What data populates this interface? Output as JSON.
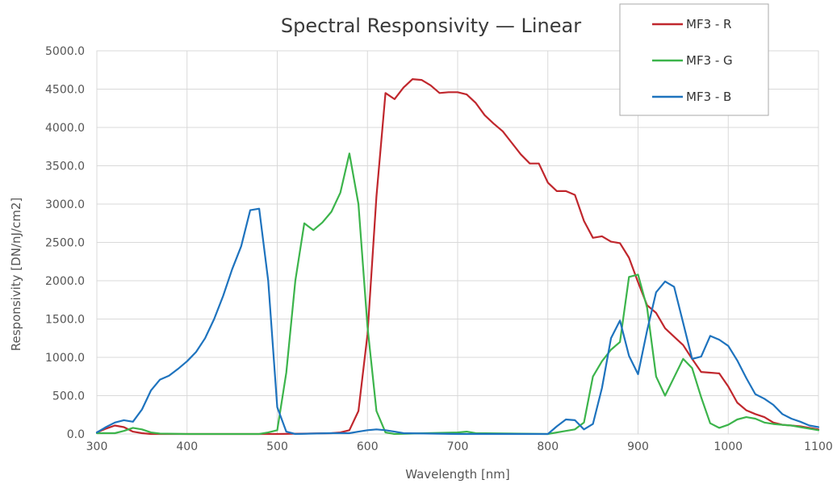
{
  "chart_data": {
    "type": "line",
    "title": "Spectral Responsivity — Linear",
    "xlabel": "Wavelength [nm]",
    "ylabel": "Responsivity [DN/nJ/cm2]",
    "xlim": [
      300,
      1100
    ],
    "ylim": [
      0,
      5000
    ],
    "x_ticks": [
      300,
      400,
      500,
      600,
      700,
      800,
      900,
      1000,
      1100
    ],
    "y_ticks": [
      0,
      500,
      1000,
      1500,
      2000,
      2500,
      3000,
      3500,
      4000,
      4500,
      5000
    ],
    "x_tick_labels": [
      "300",
      "400",
      "500",
      "600",
      "700",
      "800",
      "900",
      "1000",
      "1100"
    ],
    "y_tick_labels": [
      "0.0",
      "500.0",
      "1000.0",
      "1500.0",
      "2000.0",
      "2500.0",
      "3000.0",
      "3500.0",
      "4000.0",
      "4500.0",
      "5000.0"
    ],
    "grid": true,
    "legend_position": "top-right",
    "series": [
      {
        "name": "MF3 - R",
        "color": "#c0272d",
        "points": [
          [
            300,
            20
          ],
          [
            310,
            70
          ],
          [
            320,
            110
          ],
          [
            330,
            90
          ],
          [
            340,
            30
          ],
          [
            350,
            10
          ],
          [
            360,
            0
          ],
          [
            400,
            0
          ],
          [
            500,
            0
          ],
          [
            560,
            10
          ],
          [
            570,
            20
          ],
          [
            580,
            50
          ],
          [
            590,
            300
          ],
          [
            600,
            1300
          ],
          [
            610,
            3100
          ],
          [
            620,
            4450
          ],
          [
            630,
            4370
          ],
          [
            640,
            4520
          ],
          [
            650,
            4630
          ],
          [
            660,
            4620
          ],
          [
            670,
            4550
          ],
          [
            680,
            4450
          ],
          [
            690,
            4460
          ],
          [
            700,
            4460
          ],
          [
            710,
            4430
          ],
          [
            720,
            4320
          ],
          [
            730,
            4160
          ],
          [
            740,
            4050
          ],
          [
            750,
            3950
          ],
          [
            760,
            3800
          ],
          [
            770,
            3650
          ],
          [
            780,
            3530
          ],
          [
            790,
            3530
          ],
          [
            800,
            3280
          ],
          [
            810,
            3170
          ],
          [
            820,
            3170
          ],
          [
            830,
            3120
          ],
          [
            840,
            2780
          ],
          [
            850,
            2560
          ],
          [
            860,
            2580
          ],
          [
            870,
            2510
          ],
          [
            880,
            2490
          ],
          [
            890,
            2300
          ],
          [
            900,
            1980
          ],
          [
            910,
            1680
          ],
          [
            920,
            1580
          ],
          [
            930,
            1380
          ],
          [
            940,
            1270
          ],
          [
            950,
            1160
          ],
          [
            960,
            980
          ],
          [
            970,
            810
          ],
          [
            980,
            800
          ],
          [
            990,
            790
          ],
          [
            1000,
            620
          ],
          [
            1010,
            410
          ],
          [
            1020,
            310
          ],
          [
            1030,
            260
          ],
          [
            1040,
            220
          ],
          [
            1050,
            150
          ],
          [
            1060,
            120
          ],
          [
            1070,
            110
          ],
          [
            1080,
            100
          ],
          [
            1090,
            80
          ],
          [
            1100,
            60
          ]
        ]
      },
      {
        "name": "MF3 - G",
        "color": "#3cb44b",
        "points": [
          [
            300,
            10
          ],
          [
            320,
            10
          ],
          [
            330,
            40
          ],
          [
            340,
            80
          ],
          [
            350,
            60
          ],
          [
            360,
            20
          ],
          [
            370,
            5
          ],
          [
            400,
            0
          ],
          [
            480,
            0
          ],
          [
            490,
            20
          ],
          [
            500,
            50
          ],
          [
            510,
            800
          ],
          [
            520,
            2000
          ],
          [
            530,
            2750
          ],
          [
            540,
            2660
          ],
          [
            550,
            2760
          ],
          [
            560,
            2900
          ],
          [
            570,
            3150
          ],
          [
            580,
            3660
          ],
          [
            590,
            3000
          ],
          [
            600,
            1400
          ],
          [
            610,
            300
          ],
          [
            620,
            20
          ],
          [
            630,
            0
          ],
          [
            700,
            20
          ],
          [
            710,
            30
          ],
          [
            720,
            10
          ],
          [
            800,
            0
          ],
          [
            820,
            40
          ],
          [
            830,
            60
          ],
          [
            840,
            150
          ],
          [
            850,
            750
          ],
          [
            860,
            950
          ],
          [
            870,
            1100
          ],
          [
            880,
            1200
          ],
          [
            890,
            2050
          ],
          [
            900,
            2080
          ],
          [
            910,
            1650
          ],
          [
            920,
            750
          ],
          [
            930,
            500
          ],
          [
            940,
            740
          ],
          [
            950,
            980
          ],
          [
            960,
            860
          ],
          [
            970,
            480
          ],
          [
            980,
            140
          ],
          [
            990,
            80
          ],
          [
            1000,
            120
          ],
          [
            1010,
            190
          ],
          [
            1020,
            220
          ],
          [
            1030,
            200
          ],
          [
            1040,
            150
          ],
          [
            1050,
            130
          ],
          [
            1060,
            120
          ],
          [
            1070,
            110
          ],
          [
            1080,
            90
          ],
          [
            1090,
            70
          ],
          [
            1100,
            50
          ]
        ]
      },
      {
        "name": "MF3 - B",
        "color": "#1e73be",
        "points": [
          [
            300,
            20
          ],
          [
            310,
            90
          ],
          [
            320,
            150
          ],
          [
            330,
            180
          ],
          [
            340,
            160
          ],
          [
            350,
            320
          ],
          [
            360,
            570
          ],
          [
            370,
            710
          ],
          [
            380,
            760
          ],
          [
            390,
            850
          ],
          [
            400,
            950
          ],
          [
            410,
            1070
          ],
          [
            420,
            1250
          ],
          [
            430,
            1500
          ],
          [
            440,
            1800
          ],
          [
            450,
            2150
          ],
          [
            460,
            2450
          ],
          [
            470,
            2920
          ],
          [
            480,
            2940
          ],
          [
            490,
            2000
          ],
          [
            500,
            350
          ],
          [
            510,
            30
          ],
          [
            520,
            0
          ],
          [
            560,
            10
          ],
          [
            580,
            10
          ],
          [
            590,
            30
          ],
          [
            600,
            50
          ],
          [
            610,
            60
          ],
          [
            620,
            50
          ],
          [
            630,
            30
          ],
          [
            640,
            10
          ],
          [
            700,
            0
          ],
          [
            800,
            0
          ],
          [
            810,
            100
          ],
          [
            820,
            190
          ],
          [
            830,
            180
          ],
          [
            840,
            60
          ],
          [
            850,
            130
          ],
          [
            860,
            600
          ],
          [
            870,
            1250
          ],
          [
            880,
            1480
          ],
          [
            890,
            1020
          ],
          [
            900,
            780
          ],
          [
            910,
            1350
          ],
          [
            920,
            1850
          ],
          [
            930,
            1990
          ],
          [
            940,
            1920
          ],
          [
            950,
            1450
          ],
          [
            960,
            980
          ],
          [
            970,
            1010
          ],
          [
            980,
            1280
          ],
          [
            990,
            1230
          ],
          [
            1000,
            1150
          ],
          [
            1010,
            960
          ],
          [
            1020,
            730
          ],
          [
            1030,
            520
          ],
          [
            1040,
            460
          ],
          [
            1050,
            380
          ],
          [
            1060,
            260
          ],
          [
            1070,
            200
          ],
          [
            1080,
            160
          ],
          [
            1090,
            110
          ],
          [
            1100,
            90
          ]
        ]
      }
    ]
  }
}
